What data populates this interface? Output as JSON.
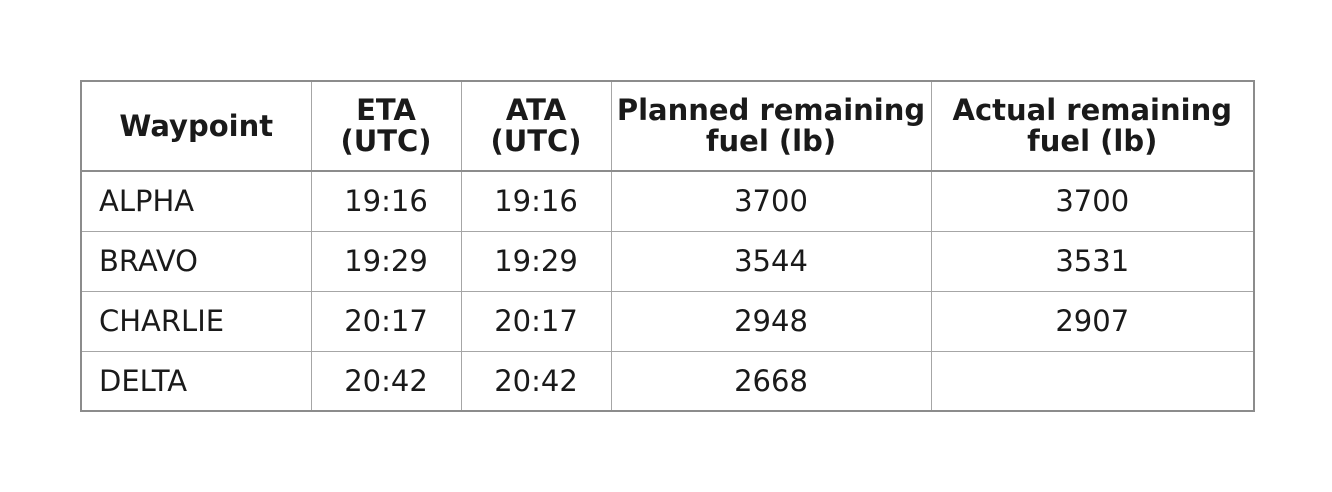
{
  "table": {
    "headers": {
      "waypoint": "Waypoint",
      "eta": "ETA\n(UTC)",
      "ata": "ATA\n(UTC)",
      "planned": "Planned remaining\nfuel (lb)",
      "actual": "Actual remaining\nfuel (lb)"
    },
    "rows": [
      {
        "waypoint": "ALPHA",
        "eta": "19:16",
        "ata": "19:16",
        "planned": "3700",
        "actual": "3700"
      },
      {
        "waypoint": "BRAVO",
        "eta": "19:29",
        "ata": "19:29",
        "planned": "3544",
        "actual": "3531"
      },
      {
        "waypoint": "CHARLIE",
        "eta": "20:17",
        "ata": "20:17",
        "planned": "2948",
        "actual": "2907"
      },
      {
        "waypoint": "DELTA",
        "eta": "20:42",
        "ata": "20:42",
        "planned": "2668",
        "actual": ""
      }
    ]
  }
}
